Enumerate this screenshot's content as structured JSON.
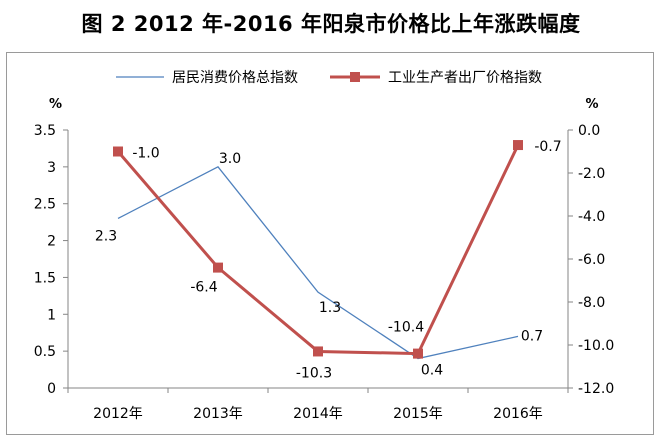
{
  "title": "图 2    2012 年-2016 年阳泉市价格比上年涨跌幅度",
  "chart_data": {
    "type": "line",
    "categories": [
      "2012年",
      "2013年",
      "2014年",
      "2015年",
      "2016年"
    ],
    "left_axis": {
      "unit": "%",
      "min": 0,
      "max": 3.5,
      "step": 0.5,
      "tick_labels": [
        "0",
        "0.5",
        "1",
        "1.5",
        "2",
        "2.5",
        "3",
        "3.5"
      ]
    },
    "right_axis": {
      "unit": "%",
      "min": -12,
      "max": 0,
      "step": 2,
      "tick_labels": [
        "-12.0",
        "-10.0",
        "-8.0",
        "-6.0",
        "-4.0",
        "-2.0",
        "0.0"
      ]
    },
    "series": [
      {
        "name": "居民消费价格总指数",
        "axis": "left",
        "values": [
          2.3,
          3.0,
          1.3,
          0.4,
          0.7
        ],
        "labels": [
          "2.3",
          "3.0",
          "1.3",
          "0.4",
          "0.7"
        ],
        "color": "#4f81bd"
      },
      {
        "name": "工业生产者出厂价格指数",
        "axis": "right",
        "values": [
          -1.0,
          -6.4,
          -10.3,
          -10.4,
          -0.7
        ],
        "labels": [
          "-1.0",
          "-6.4",
          "-10.3",
          "-10.4",
          "-0.7"
        ],
        "color": "#c0504d"
      }
    ],
    "legend_position": "top",
    "grid": false
  }
}
